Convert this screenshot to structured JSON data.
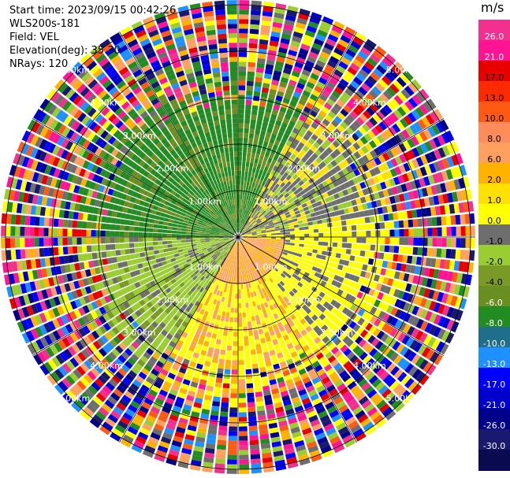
{
  "header": {
    "start_time": "Start time: 2023/09/15 00:42:26",
    "instrument": "WLS200s-181",
    "field": "Field: VEL",
    "elevation": "Elevation(deg): 35.30",
    "nrays": "NRays: 120"
  },
  "ppi": {
    "range_rings": [
      "1.00km",
      "2.00km",
      "3.00km",
      "4.00km",
      "5.00km"
    ],
    "num_rays": 120,
    "max_range_km": 5.1
  },
  "colorbar": {
    "unit": "m/s",
    "ticks": [
      "26.0",
      "21.0",
      "17.0",
      "13.0",
      "10.0",
      "8.0",
      "6.0",
      "2.0",
      "1.0",
      "0.0",
      "-1.0",
      "-2.0",
      "-4.0",
      "-6.0",
      "-8.0",
      "-10.0",
      "-13.0",
      "-17.0",
      "-21.0",
      "-26.0",
      "-30.0"
    ],
    "colors": [
      "#f2318e",
      "#ff1493",
      "#e80000",
      "#ff2a00",
      "#ff5a14",
      "#ff8c5a",
      "#ffa060",
      "#ffb300",
      "#ffe000",
      "#ffff00",
      "#6e6e6e",
      "#9acd32",
      "#7a9a28",
      "#6b8e23",
      "#228b22",
      "#1e6e8c",
      "#1e90ff",
      "#0000ff",
      "#0000cd",
      "#00008b",
      "#191970",
      "#0a0a50"
    ]
  }
}
